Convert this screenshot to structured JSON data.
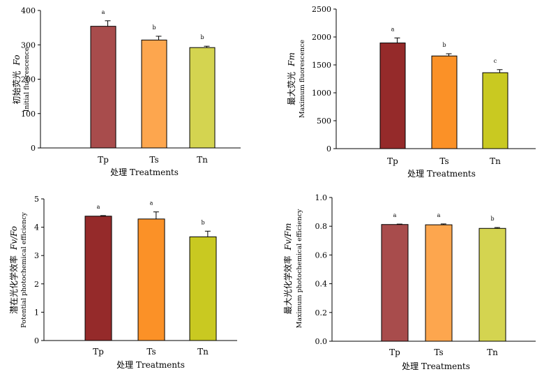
{
  "chart_data": [
    {
      "id": "fo",
      "type": "bar",
      "categories": [
        "Tp",
        "Ts",
        "Tn"
      ],
      "values": [
        354,
        314,
        292
      ],
      "errors": [
        16,
        11,
        4
      ],
      "significance": [
        "a",
        "b",
        "b"
      ],
      "colors": [
        "#a84c4c",
        "#fda64e",
        "#d4d450"
      ],
      "ylim": [
        0,
        400
      ],
      "yticks": [
        "0",
        "100",
        "200",
        "300",
        "400"
      ],
      "ylabel_cn": "初始荧光",
      "ylabel_symbol": "Fo",
      "ylabel_en": "Initial fluorescence",
      "xlabel": "处理 Treatments"
    },
    {
      "id": "fm",
      "type": "bar",
      "categories": [
        "Tp",
        "Ts",
        "Tn"
      ],
      "values": [
        1893,
        1660,
        1360
      ],
      "errors": [
        90,
        40,
        55
      ],
      "significance": [
        "a",
        "b",
        "c"
      ],
      "colors": [
        "#952a2a",
        "#fb9127",
        "#c9c921"
      ],
      "ylim": [
        0,
        2500
      ],
      "yticks": [
        "0",
        "500",
        "1000",
        "1500",
        "2000",
        "2500"
      ],
      "ylabel_cn": "最大荧光",
      "ylabel_symbol": "Fm",
      "ylabel_en": "Maximum fluorescence",
      "xlabel": "处理 Treatments"
    },
    {
      "id": "fvfo",
      "type": "bar",
      "categories": [
        "Tp",
        "Ts",
        "Tn"
      ],
      "values": [
        4.39,
        4.29,
        3.66
      ],
      "errors": [
        0.02,
        0.25,
        0.2
      ],
      "significance": [
        "a",
        "a",
        "b"
      ],
      "colors": [
        "#952a2a",
        "#fb9127",
        "#c9c921"
      ],
      "ylim": [
        0,
        5
      ],
      "yticks": [
        "0",
        "1",
        "2",
        "3",
        "4",
        "5"
      ],
      "ylabel_cn": "潜在光化学效率",
      "ylabel_symbol": "Fv/Fo",
      "ylabel_en": "Potential photochemical efficiency",
      "xlabel": "处理 Treatments"
    },
    {
      "id": "fvfm",
      "type": "bar",
      "categories": [
        "Tp",
        "Ts",
        "Tn"
      ],
      "values": [
        0.812,
        0.81,
        0.785
      ],
      "errors": [
        0.003,
        0.006,
        0.006
      ],
      "significance": [
        "a",
        "a",
        "b"
      ],
      "colors": [
        "#a84c4c",
        "#fda64e",
        "#d4d450"
      ],
      "ylim": [
        0,
        1
      ],
      "yticks": [
        "0.0",
        "0.2",
        "0.4",
        "0.6",
        "0.8",
        "1.0"
      ],
      "ylabel_cn": "最大光化学效率",
      "ylabel_symbol": "Fv/Fm",
      "ylabel_en": "Maximum photochemical efficiency",
      "xlabel": "处理 Treatments"
    }
  ]
}
